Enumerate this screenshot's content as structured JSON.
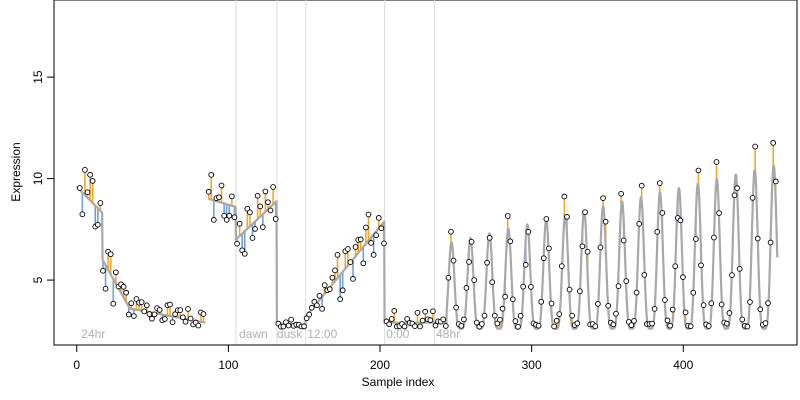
{
  "chart_data": {
    "type": "line",
    "title": "",
    "xlabel": "Sample index",
    "ylabel": "Expression",
    "xlim": [
      -15,
      475
    ],
    "ylim": [
      1.8,
      18.8
    ],
    "x_ticks": [
      0,
      100,
      200,
      300,
      400
    ],
    "y_ticks": [
      5,
      10,
      15
    ],
    "grid": false,
    "legend": "none",
    "condition_boundaries": [
      105,
      132,
      151,
      203,
      236
    ],
    "condition_labels": [
      {
        "label": "24hr",
        "x": 3
      },
      {
        "label": "dawn",
        "x": 107
      },
      {
        "label": "dusk",
        "x": 132
      },
      {
        "label": "12:00",
        "x": 152
      },
      {
        "label": "0:00",
        "x": 204
      },
      {
        "label": "48hr",
        "x": 237
      }
    ],
    "colors": {
      "fitted_line": "#a8a8a8",
      "residual_above": "#f5a623",
      "residual_below": "#6f9fdc",
      "boundary": "#dddddd",
      "point_fill": "#ffffff",
      "point_stroke": "#000000"
    },
    "series": [
      {
        "name": "fitted",
        "segments": [
          {
            "x0": 0,
            "x1": 17,
            "from": 9.6,
            "to": 8.3
          },
          {
            "x0": 17,
            "x1": 35,
            "from": 6.0,
            "to": 3.6
          },
          {
            "x0": 35,
            "x1": 85,
            "from": 3.6,
            "to": 2.9
          },
          {
            "x0": 87,
            "x1": 105,
            "from": 9.0,
            "to": 8.6
          },
          {
            "x0": 105,
            "x1": 132,
            "from": 7.0,
            "to": 8.9
          },
          {
            "x0": 132,
            "x1": 151,
            "from": 2.9,
            "to": 2.6
          },
          {
            "x0": 151,
            "x1": 203,
            "from": 3.2,
            "to": 7.9
          },
          {
            "x0": 203,
            "x1": 244,
            "from": 2.9,
            "to": 2.9
          }
        ],
        "oscillation": {
          "x0": 244,
          "x1": 462,
          "period": 12.5,
          "base": 2.6,
          "amp_start": 4.2,
          "amp_end": 8.1
        }
      },
      {
        "name": "observed",
        "seed": 20240613,
        "start": 2,
        "end": 462,
        "step": 1.7
      }
    ]
  }
}
